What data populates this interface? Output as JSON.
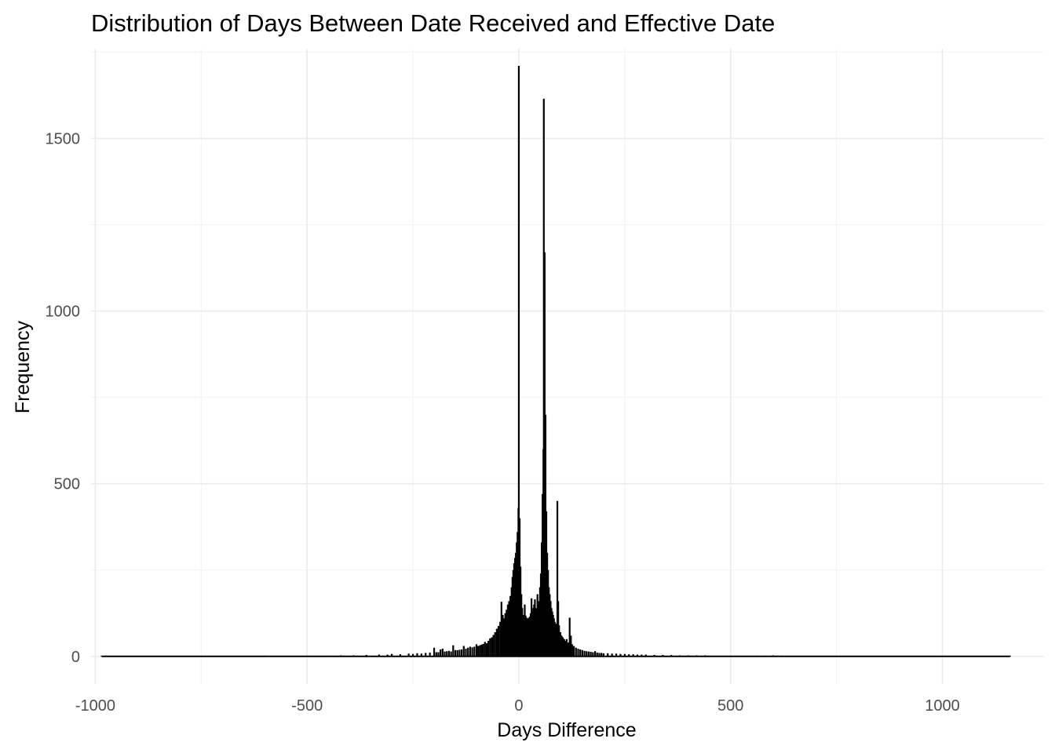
{
  "chart_data": {
    "type": "bar",
    "title": "Distribution of Days Between Date Received and Effective Date",
    "xlabel": "Days Difference",
    "ylabel": "Frequency",
    "xlim": [
      -1010,
      1240
    ],
    "ylim": [
      -80,
      1760
    ],
    "x_ticks": [
      -1000,
      -500,
      0,
      500,
      1000
    ],
    "x_tick_labels": [
      "-1000",
      "-500",
      "0",
      "500",
      "1000"
    ],
    "y_ticks": [
      0,
      500,
      1000,
      1500
    ],
    "y_tick_labels": [
      "0",
      "500",
      "1000",
      "1500"
    ],
    "grid": true,
    "bar_color": "#000000",
    "bins": [
      {
        "x": -985,
        "y": 2
      },
      {
        "x": -900,
        "y": 1
      },
      {
        "x": -800,
        "y": 1
      },
      {
        "x": -700,
        "y": 1
      },
      {
        "x": -640,
        "y": 1
      },
      {
        "x": -600,
        "y": 2
      },
      {
        "x": -550,
        "y": 1
      },
      {
        "x": -500,
        "y": 2
      },
      {
        "x": -450,
        "y": 2
      },
      {
        "x": -420,
        "y": 3
      },
      {
        "x": -390,
        "y": 3
      },
      {
        "x": -360,
        "y": 4
      },
      {
        "x": -330,
        "y": 5
      },
      {
        "x": -310,
        "y": 5
      },
      {
        "x": -300,
        "y": 7
      },
      {
        "x": -280,
        "y": 6
      },
      {
        "x": -260,
        "y": 8
      },
      {
        "x": -250,
        "y": 7
      },
      {
        "x": -240,
        "y": 9
      },
      {
        "x": -230,
        "y": 8
      },
      {
        "x": -220,
        "y": 10
      },
      {
        "x": -210,
        "y": 11
      },
      {
        "x": -200,
        "y": 25
      },
      {
        "x": -195,
        "y": 12
      },
      {
        "x": -190,
        "y": 12
      },
      {
        "x": -185,
        "y": 20
      },
      {
        "x": -180,
        "y": 22
      },
      {
        "x": -175,
        "y": 14
      },
      {
        "x": -170,
        "y": 15
      },
      {
        "x": -165,
        "y": 16
      },
      {
        "x": -160,
        "y": 14
      },
      {
        "x": -155,
        "y": 32
      },
      {
        "x": -150,
        "y": 18
      },
      {
        "x": -145,
        "y": 18
      },
      {
        "x": -140,
        "y": 19
      },
      {
        "x": -135,
        "y": 20
      },
      {
        "x": -130,
        "y": 30
      },
      {
        "x": -125,
        "y": 22
      },
      {
        "x": -120,
        "y": 25
      },
      {
        "x": -115,
        "y": 28
      },
      {
        "x": -110,
        "y": 26
      },
      {
        "x": -105,
        "y": 28
      },
      {
        "x": -100,
        "y": 35
      },
      {
        "x": -96,
        "y": 30
      },
      {
        "x": -92,
        "y": 32
      },
      {
        "x": -88,
        "y": 34
      },
      {
        "x": -84,
        "y": 36
      },
      {
        "x": -80,
        "y": 42
      },
      {
        "x": -76,
        "y": 38
      },
      {
        "x": -72,
        "y": 45
      },
      {
        "x": -68,
        "y": 52
      },
      {
        "x": -64,
        "y": 55
      },
      {
        "x": -60,
        "y": 62
      },
      {
        "x": -56,
        "y": 70
      },
      {
        "x": -52,
        "y": 80
      },
      {
        "x": -48,
        "y": 88
      },
      {
        "x": -44,
        "y": 100
      },
      {
        "x": -41,
        "y": 158
      },
      {
        "x": -38,
        "y": 120
      },
      {
        "x": -35,
        "y": 110
      },
      {
        "x": -32,
        "y": 125
      },
      {
        "x": -29,
        "y": 135
      },
      {
        "x": -26,
        "y": 150
      },
      {
        "x": -23,
        "y": 160
      },
      {
        "x": -20,
        "y": 175
      },
      {
        "x": -17,
        "y": 200
      },
      {
        "x": -15,
        "y": 230
      },
      {
        "x": -13,
        "y": 250
      },
      {
        "x": -11,
        "y": 270
      },
      {
        "x": -9,
        "y": 285
      },
      {
        "x": -7,
        "y": 300
      },
      {
        "x": -5,
        "y": 330
      },
      {
        "x": -3,
        "y": 360
      },
      {
        "x": -1,
        "y": 430
      },
      {
        "x": 0,
        "y": 1710
      },
      {
        "x": 2,
        "y": 400
      },
      {
        "x": 4,
        "y": 260
      },
      {
        "x": 6,
        "y": 180
      },
      {
        "x": 8,
        "y": 140
      },
      {
        "x": 10,
        "y": 120
      },
      {
        "x": 12,
        "y": 110
      },
      {
        "x": 14,
        "y": 150
      },
      {
        "x": 16,
        "y": 118
      },
      {
        "x": 18,
        "y": 112
      },
      {
        "x": 20,
        "y": 108
      },
      {
        "x": 22,
        "y": 110
      },
      {
        "x": 24,
        "y": 112
      },
      {
        "x": 26,
        "y": 115
      },
      {
        "x": 28,
        "y": 125
      },
      {
        "x": 30,
        "y": 168
      },
      {
        "x": 32,
        "y": 130
      },
      {
        "x": 34,
        "y": 140
      },
      {
        "x": 36,
        "y": 150
      },
      {
        "x": 38,
        "y": 165
      },
      {
        "x": 40,
        "y": 140
      },
      {
        "x": 42,
        "y": 130
      },
      {
        "x": 44,
        "y": 180
      },
      {
        "x": 46,
        "y": 150
      },
      {
        "x": 48,
        "y": 160
      },
      {
        "x": 50,
        "y": 200
      },
      {
        "x": 52,
        "y": 240
      },
      {
        "x": 54,
        "y": 330
      },
      {
        "x": 56,
        "y": 470
      },
      {
        "x": 58,
        "y": 600
      },
      {
        "x": 59,
        "y": 1615
      },
      {
        "x": 61,
        "y": 1170
      },
      {
        "x": 63,
        "y": 700
      },
      {
        "x": 65,
        "y": 420
      },
      {
        "x": 67,
        "y": 300
      },
      {
        "x": 69,
        "y": 250
      },
      {
        "x": 71,
        "y": 200
      },
      {
        "x": 73,
        "y": 180
      },
      {
        "x": 75,
        "y": 160
      },
      {
        "x": 77,
        "y": 140
      },
      {
        "x": 79,
        "y": 130
      },
      {
        "x": 81,
        "y": 120
      },
      {
        "x": 83,
        "y": 110
      },
      {
        "x": 85,
        "y": 100
      },
      {
        "x": 88,
        "y": 95
      },
      {
        "x": 91,
        "y": 450
      },
      {
        "x": 93,
        "y": 160
      },
      {
        "x": 95,
        "y": 90
      },
      {
        "x": 98,
        "y": 70
      },
      {
        "x": 101,
        "y": 60
      },
      {
        "x": 104,
        "y": 55
      },
      {
        "x": 107,
        "y": 50
      },
      {
        "x": 110,
        "y": 45
      },
      {
        "x": 113,
        "y": 50
      },
      {
        "x": 117,
        "y": 40
      },
      {
        "x": 120,
        "y": 112
      },
      {
        "x": 123,
        "y": 60
      },
      {
        "x": 126,
        "y": 35
      },
      {
        "x": 130,
        "y": 30
      },
      {
        "x": 135,
        "y": 25
      },
      {
        "x": 140,
        "y": 22
      },
      {
        "x": 145,
        "y": 20
      },
      {
        "x": 150,
        "y": 18
      },
      {
        "x": 155,
        "y": 16
      },
      {
        "x": 160,
        "y": 15
      },
      {
        "x": 165,
        "y": 14
      },
      {
        "x": 170,
        "y": 13
      },
      {
        "x": 175,
        "y": 12
      },
      {
        "x": 180,
        "y": 15
      },
      {
        "x": 185,
        "y": 11
      },
      {
        "x": 190,
        "y": 10
      },
      {
        "x": 195,
        "y": 10
      },
      {
        "x": 200,
        "y": 9
      },
      {
        "x": 210,
        "y": 9
      },
      {
        "x": 220,
        "y": 8
      },
      {
        "x": 230,
        "y": 8
      },
      {
        "x": 240,
        "y": 7
      },
      {
        "x": 250,
        "y": 7
      },
      {
        "x": 260,
        "y": 6
      },
      {
        "x": 270,
        "y": 6
      },
      {
        "x": 280,
        "y": 5
      },
      {
        "x": 290,
        "y": 5
      },
      {
        "x": 300,
        "y": 5
      },
      {
        "x": 320,
        "y": 4
      },
      {
        "x": 340,
        "y": 4
      },
      {
        "x": 360,
        "y": 4
      },
      {
        "x": 380,
        "y": 3
      },
      {
        "x": 400,
        "y": 3
      },
      {
        "x": 420,
        "y": 3
      },
      {
        "x": 440,
        "y": 3
      },
      {
        "x": 460,
        "y": 2
      },
      {
        "x": 480,
        "y": 2
      },
      {
        "x": 500,
        "y": 2
      },
      {
        "x": 520,
        "y": 2
      },
      {
        "x": 540,
        "y": 2
      },
      {
        "x": 560,
        "y": 2
      },
      {
        "x": 580,
        "y": 2
      },
      {
        "x": 600,
        "y": 3
      },
      {
        "x": 620,
        "y": 2
      },
      {
        "x": 640,
        "y": 1
      },
      {
        "x": 680,
        "y": 1
      },
      {
        "x": 720,
        "y": 1
      },
      {
        "x": 760,
        "y": 1
      },
      {
        "x": 800,
        "y": 1
      },
      {
        "x": 850,
        "y": 1
      },
      {
        "x": 900,
        "y": 1
      },
      {
        "x": 950,
        "y": 1
      },
      {
        "x": 1000,
        "y": 1
      },
      {
        "x": 1050,
        "y": 1
      },
      {
        "x": 1100,
        "y": 1
      },
      {
        "x": 1160,
        "y": 2
      }
    ]
  }
}
